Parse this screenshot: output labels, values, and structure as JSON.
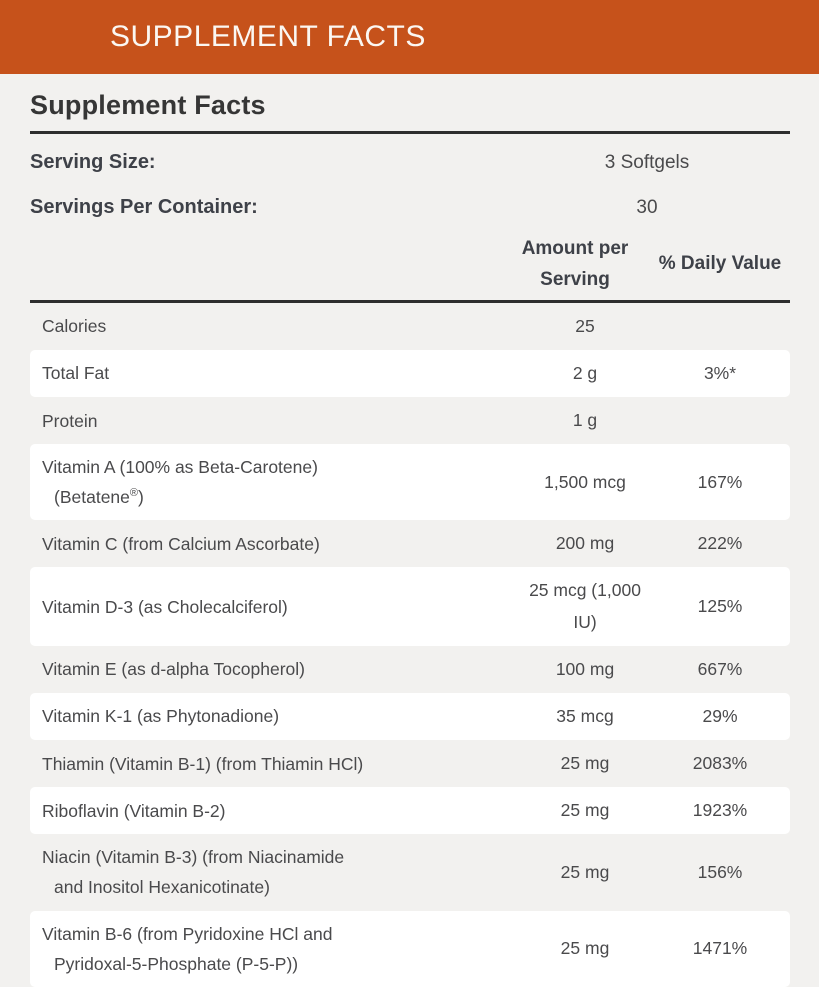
{
  "banner": {
    "title": "SUPPLEMENT FACTS"
  },
  "panel": {
    "heading": "Supplement Facts",
    "serving_info": [
      {
        "label": "Serving Size:",
        "value": "3 Softgels"
      },
      {
        "label": "Servings Per Container:",
        "value": "30"
      }
    ],
    "columns": {
      "amount": "Amount per Serving",
      "daily_value": "% Daily Value"
    },
    "rows": [
      {
        "name": "Calories",
        "amount": "25",
        "daily_value": ""
      },
      {
        "name": "Total Fat",
        "amount": "2 g",
        "daily_value": "3%*"
      },
      {
        "name": "Protein",
        "amount": "1 g",
        "daily_value": ""
      },
      {
        "name": "Vitamin A (100% as Beta-Carotene) (Betatene®)",
        "amount": "1,500 mcg",
        "daily_value": "167%"
      },
      {
        "name": "Vitamin C (from Calcium Ascorbate)",
        "amount": "200 mg",
        "daily_value": "222%"
      },
      {
        "name": "Vitamin D-3 (as Cholecalciferol)",
        "amount": "25 mcg (1,000 IU)",
        "daily_value": "125%"
      },
      {
        "name": "Vitamin E (as d-alpha Tocopherol)",
        "amount": "100 mg",
        "daily_value": "667%"
      },
      {
        "name": "Vitamin K-1 (as Phytonadione)",
        "amount": "35 mcg",
        "daily_value": "29%"
      },
      {
        "name": "Thiamin (Vitamin B-1) (from Thiamin HCl)",
        "amount": "25 mg",
        "daily_value": "2083%"
      },
      {
        "name": "Riboflavin (Vitamin B-2)",
        "amount": "25 mg",
        "daily_value": "1923%"
      },
      {
        "name": "Niacin (Vitamin B-3) (from Niacinamide and Inositol Hexanicotinate)",
        "amount": "25 mg",
        "daily_value": "156%"
      },
      {
        "name": "Vitamin B-6 (from Pyridoxine HCl and Pyridoxal-5-Phosphate (P-5-P))",
        "amount": "25 mg",
        "daily_value": "1471%"
      }
    ]
  },
  "colors": {
    "banner_bg": "#C6521B",
    "banner_text": "#FBF7F2",
    "page_bg": "#F2F1EF",
    "card_bg": "#FFFFFF",
    "rule": "#2E2E2E",
    "heading_text": "#363636",
    "body_text": "#4A4A4C"
  }
}
